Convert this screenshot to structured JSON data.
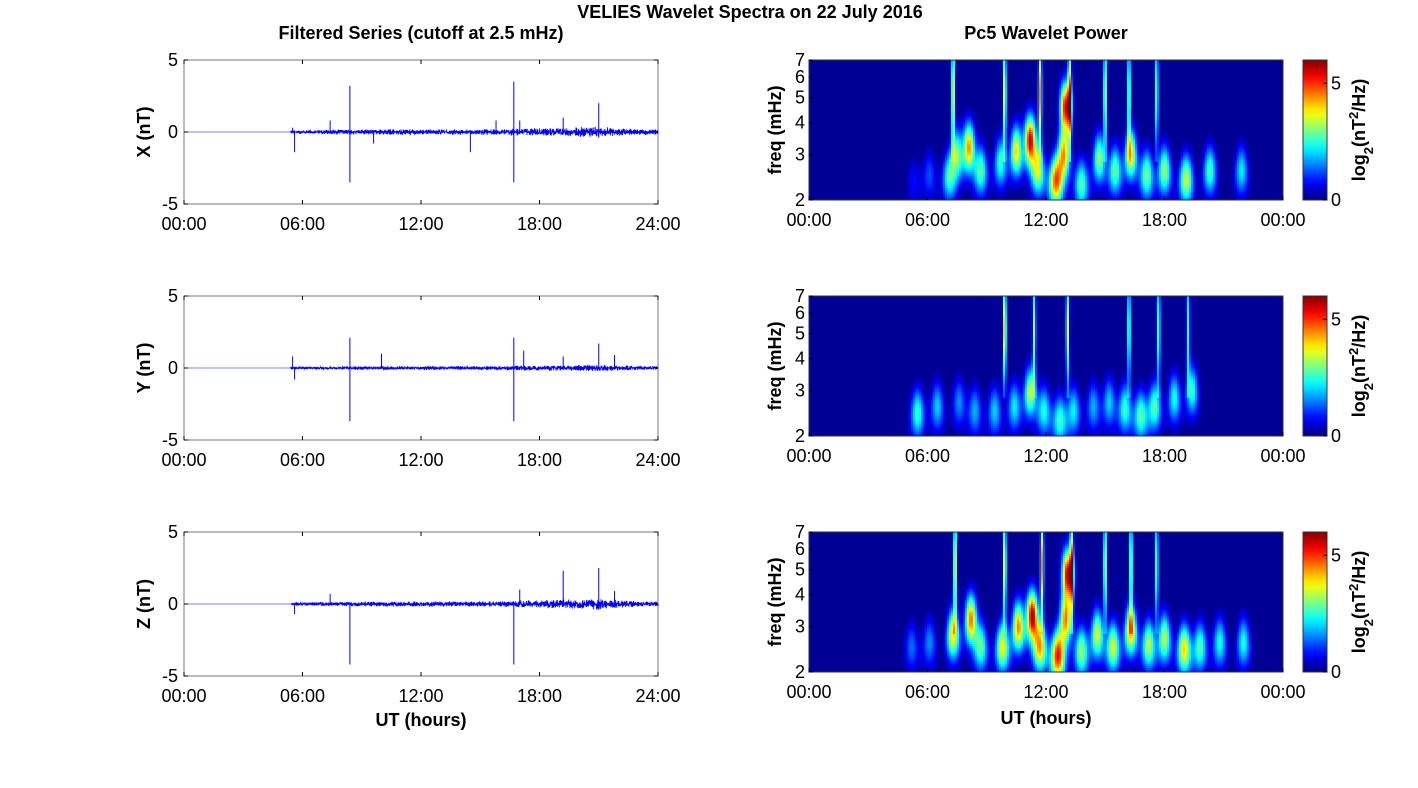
{
  "figure": {
    "title": "VELIES Wavelet Spectra on 22 July 2016",
    "left_title": "Filtered Series (cutoff at 2.5 mHz)",
    "right_title": "Pc5 Wavelet Power"
  },
  "colors": {
    "series": "#0000ff",
    "background": "#ffffff",
    "axes": "#000000",
    "colormap": "jet"
  },
  "chart_data": [
    {
      "type": "line",
      "component": "X",
      "ylabel": "X (nT)",
      "xlabel": "",
      "xlim": [
        0,
        24
      ],
      "ylim": [
        -5,
        5
      ],
      "xticks": [
        "00:00",
        "06:00",
        "12:00",
        "18:00",
        "24:00"
      ],
      "yticks": [
        "-5",
        "0",
        "5"
      ],
      "data_start_hour": 5.4,
      "baseline_amplitude": 0.14,
      "envelope": [
        [
          5.4,
          0.6
        ],
        [
          9.5,
          1.0
        ],
        [
          12.0,
          1.0
        ],
        [
          14.0,
          1.0
        ],
        [
          16.0,
          1.2
        ],
        [
          19.0,
          1.6
        ],
        [
          21.0,
          2.0
        ],
        [
          22.0,
          1.4
        ],
        [
          24.0,
          1.0
        ]
      ],
      "spikes": [
        [
          5.5,
          0.3
        ],
        [
          5.6,
          -1.4
        ],
        [
          7.4,
          0.8
        ],
        [
          8.4,
          3.2
        ],
        [
          8.4,
          -3.5
        ],
        [
          9.6,
          -0.8
        ],
        [
          14.5,
          -1.4
        ],
        [
          15.8,
          0.8
        ],
        [
          16.7,
          3.5
        ],
        [
          16.7,
          -3.5
        ],
        [
          17.0,
          0.8
        ],
        [
          19.2,
          1.0
        ],
        [
          21.0,
          2.0
        ],
        [
          21.0,
          -0.4
        ]
      ]
    },
    {
      "type": "line",
      "component": "Y",
      "ylabel": "Y (nT)",
      "xlabel": "",
      "xlim": [
        0,
        24
      ],
      "ylim": [
        -5,
        5
      ],
      "xticks": [
        "00:00",
        "06:00",
        "12:00",
        "18:00",
        "24:00"
      ],
      "yticks": [
        "-5",
        "0",
        "5"
      ],
      "data_start_hour": 5.4,
      "baseline_amplitude": 0.1,
      "envelope": [
        [
          5.4,
          0.6
        ],
        [
          9.5,
          0.9
        ],
        [
          12.0,
          1.0
        ],
        [
          14.0,
          1.0
        ],
        [
          16.0,
          1.1
        ],
        [
          19.0,
          1.5
        ],
        [
          21.0,
          1.8
        ],
        [
          22.0,
          1.3
        ],
        [
          24.0,
          1.0
        ]
      ],
      "spikes": [
        [
          5.5,
          0.8
        ],
        [
          5.6,
          -0.8
        ],
        [
          8.4,
          2.1
        ],
        [
          8.4,
          -3.7
        ],
        [
          10.0,
          1.0
        ],
        [
          16.7,
          2.1
        ],
        [
          16.7,
          -3.7
        ],
        [
          17.2,
          1.2
        ],
        [
          19.2,
          0.8
        ],
        [
          21.0,
          1.7
        ],
        [
          21.8,
          0.9
        ]
      ]
    },
    {
      "type": "line",
      "component": "Z",
      "ylabel": "Z (nT)",
      "xlabel": "UT (hours)",
      "xlim": [
        0,
        24
      ],
      "ylim": [
        -5,
        5
      ],
      "xticks": [
        "00:00",
        "06:00",
        "12:00",
        "18:00",
        "24:00"
      ],
      "yticks": [
        "-5",
        "0",
        "5"
      ],
      "data_start_hour": 5.4,
      "baseline_amplitude": 0.13,
      "envelope": [
        [
          5.4,
          0.6
        ],
        [
          9.5,
          1.0
        ],
        [
          12.0,
          1.1
        ],
        [
          14.0,
          1.0
        ],
        [
          16.0,
          1.2
        ],
        [
          19.0,
          1.8
        ],
        [
          21.0,
          2.2
        ],
        [
          22.0,
          1.5
        ],
        [
          24.0,
          1.0
        ]
      ],
      "spikes": [
        [
          5.6,
          -0.7
        ],
        [
          7.4,
          0.7
        ],
        [
          8.4,
          -4.2
        ],
        [
          16.7,
          -4.2
        ],
        [
          17.0,
          1.0
        ],
        [
          19.2,
          2.3
        ],
        [
          21.0,
          2.5
        ],
        [
          21.0,
          -0.4
        ],
        [
          21.8,
          0.9
        ]
      ]
    },
    {
      "type": "heatmap",
      "component": "X",
      "ylabel": "freq (mHz)",
      "xlabel": "",
      "xlim": [
        0,
        24
      ],
      "ylim": [
        2,
        7
      ],
      "yscale": "log",
      "xticks": [
        "00:00",
        "06:00",
        "12:00",
        "18:00",
        "00:00"
      ],
      "yticks": [
        "2",
        "3",
        "4",
        "5",
        "6",
        "7"
      ],
      "colorbar": {
        "label": "log2(nT2/Hz)",
        "ticks": [
          "0",
          "5"
        ],
        "range": [
          0,
          6
        ]
      },
      "blobs": [
        [
          5.3,
          2.35,
          0.8
        ],
        [
          6.1,
          2.5,
          1.2
        ],
        [
          7.1,
          2.45,
          2.5
        ],
        [
          7.5,
          3.0,
          3.0
        ],
        [
          8.1,
          3.2,
          4.4
        ],
        [
          8.7,
          2.6,
          2.8
        ],
        [
          9.7,
          2.8,
          2.6
        ],
        [
          10.5,
          3.1,
          4.0
        ],
        [
          11.2,
          3.4,
          5.6
        ],
        [
          11.6,
          2.6,
          3.5
        ],
        [
          12.5,
          2.35,
          4.6
        ],
        [
          12.9,
          3.0,
          4.2
        ],
        [
          13.0,
          4.6,
          5.4
        ],
        [
          13.8,
          2.3,
          2.8
        ],
        [
          14.7,
          2.9,
          3.2
        ],
        [
          15.5,
          2.6,
          2.9
        ],
        [
          16.3,
          3.0,
          4.0
        ],
        [
          17.1,
          2.5,
          3.0
        ],
        [
          18.0,
          2.6,
          3.2
        ],
        [
          19.1,
          2.4,
          3.5
        ],
        [
          20.3,
          2.6,
          2.7
        ],
        [
          21.9,
          2.6,
          2.2
        ]
      ],
      "streaks": [
        [
          7.3,
          4.0
        ],
        [
          9.9,
          4.0
        ],
        [
          11.7,
          4.5
        ],
        [
          13.2,
          4.0
        ],
        [
          15.0,
          3.6
        ],
        [
          16.2,
          3.2
        ],
        [
          17.6,
          3.0
        ]
      ]
    },
    {
      "type": "heatmap",
      "component": "Y",
      "ylabel": "freq (mHz)",
      "xlabel": "",
      "xlim": [
        0,
        24
      ],
      "ylim": [
        2,
        7
      ],
      "yscale": "log",
      "xticks": [
        "00:00",
        "06:00",
        "12:00",
        "18:00",
        "00:00"
      ],
      "yticks": [
        "2",
        "3",
        "4",
        "5",
        "6",
        "7"
      ],
      "colorbar": {
        "label": "log2(nT2/Hz)",
        "ticks": [
          "0",
          "5"
        ],
        "range": [
          0,
          6
        ]
      },
      "blobs": [
        [
          5.5,
          2.45,
          2.6
        ],
        [
          6.5,
          2.6,
          2.0
        ],
        [
          7.6,
          2.7,
          1.6
        ],
        [
          8.4,
          2.5,
          1.8
        ],
        [
          9.4,
          2.5,
          2.0
        ],
        [
          10.4,
          2.6,
          2.2
        ],
        [
          11.2,
          2.95,
          3.4
        ],
        [
          11.9,
          2.5,
          2.4
        ],
        [
          12.7,
          2.3,
          2.6
        ],
        [
          13.4,
          2.5,
          2.2
        ],
        [
          14.4,
          2.6,
          1.8
        ],
        [
          15.2,
          2.7,
          2.0
        ],
        [
          16.0,
          2.55,
          2.6
        ],
        [
          16.8,
          2.4,
          2.8
        ],
        [
          17.5,
          2.6,
          2.8
        ],
        [
          18.5,
          2.8,
          2.4
        ],
        [
          19.4,
          3.0,
          2.6
        ]
      ],
      "streaks": [
        [
          9.9,
          4.4
        ],
        [
          11.4,
          3.4
        ],
        [
          13.1,
          3.8
        ],
        [
          16.2,
          3.0
        ],
        [
          17.7,
          3.0
        ],
        [
          19.2,
          2.8
        ]
      ]
    },
    {
      "type": "heatmap",
      "component": "Z",
      "ylabel": "freq (mHz)",
      "xlabel": "UT (hours)",
      "xlim": [
        0,
        24
      ],
      "ylim": [
        2,
        7
      ],
      "yscale": "log",
      "xticks": [
        "00:00",
        "06:00",
        "12:00",
        "18:00",
        "00:00"
      ],
      "yticks": [
        "2",
        "3",
        "4",
        "5",
        "6",
        "7"
      ],
      "colorbar": {
        "label": "log2(nT2/Hz)",
        "ticks": [
          "0",
          "5"
        ],
        "range": [
          0,
          6
        ]
      },
      "blobs": [
        [
          5.2,
          2.5,
          1.4
        ],
        [
          6.1,
          2.6,
          1.6
        ],
        [
          7.3,
          2.8,
          4.0
        ],
        [
          8.2,
          3.2,
          4.6
        ],
        [
          8.7,
          2.5,
          2.8
        ],
        [
          9.8,
          2.5,
          3.8
        ],
        [
          10.6,
          3.0,
          4.5
        ],
        [
          11.3,
          3.3,
          5.8
        ],
        [
          11.7,
          2.5,
          4.2
        ],
        [
          12.6,
          2.3,
          5.2
        ],
        [
          13.0,
          3.2,
          4.4
        ],
        [
          13.1,
          4.8,
          5.6
        ],
        [
          13.8,
          2.4,
          3.2
        ],
        [
          14.6,
          2.8,
          3.6
        ],
        [
          15.4,
          2.5,
          3.6
        ],
        [
          16.3,
          2.9,
          4.4
        ],
        [
          17.2,
          2.55,
          3.4
        ],
        [
          18.0,
          2.7,
          3.4
        ],
        [
          19.0,
          2.45,
          4.0
        ],
        [
          19.8,
          2.5,
          2.8
        ],
        [
          20.8,
          2.6,
          2.4
        ],
        [
          22.0,
          2.6,
          2.4
        ]
      ],
      "streaks": [
        [
          7.4,
          4.0
        ],
        [
          9.9,
          4.0
        ],
        [
          11.8,
          4.5
        ],
        [
          13.3,
          4.0
        ],
        [
          15.0,
          3.6
        ],
        [
          16.3,
          3.4
        ],
        [
          17.6,
          3.0
        ]
      ]
    }
  ]
}
